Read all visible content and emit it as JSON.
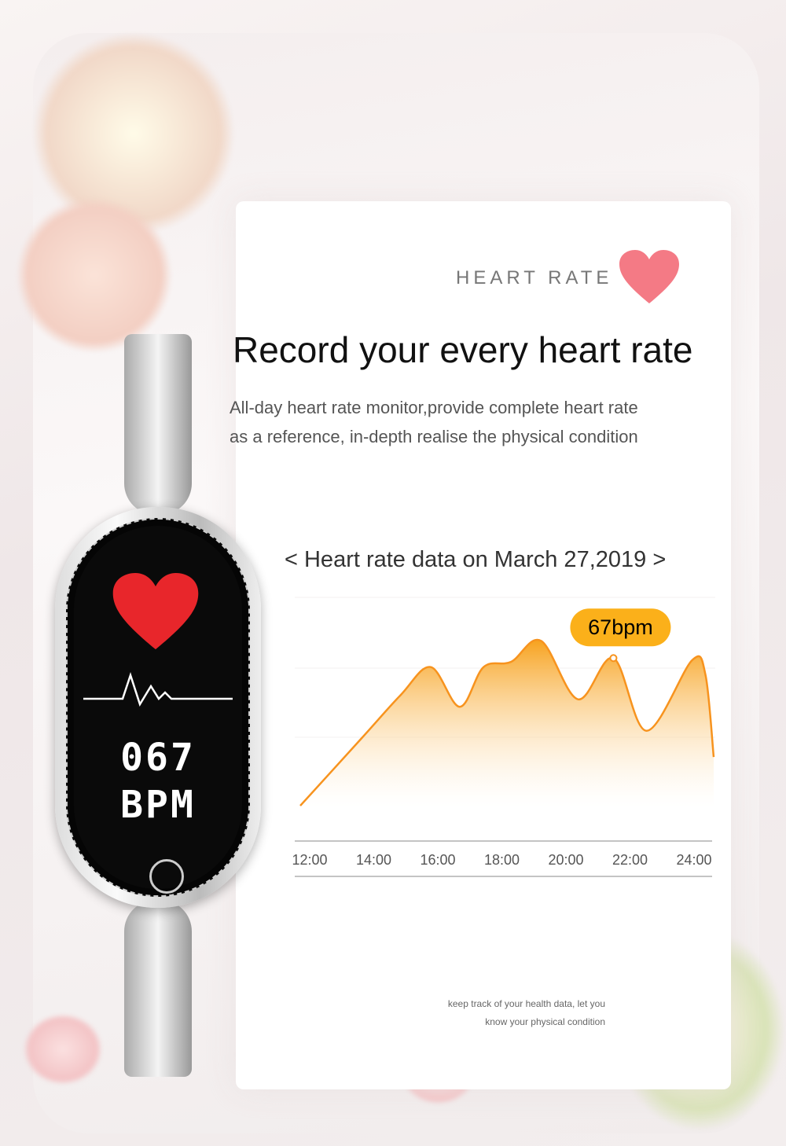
{
  "header": {
    "label": "HEART RATE",
    "icon": "heart-icon",
    "accent": "#f47a85"
  },
  "title": "Record your every heart rate",
  "description": [
    "All-day heart rate monitor,provide complete heart rate",
    "as a reference, in-depth realise the physical condition"
  ],
  "chart_title": "< Heart rate data on March 27,2019 >",
  "footer": [
    "keep track of your health data, let you",
    "know your physical condition"
  ],
  "watch": {
    "value": "067",
    "unit": "BPM"
  },
  "chart_data": {
    "type": "area",
    "x_ticks": [
      "12:00",
      "14:00",
      "16:00",
      "18:00",
      "20:00",
      "22:00",
      "24:00"
    ],
    "xlim": [
      12,
      24
    ],
    "ylim": [
      0,
      280
    ],
    "x": [
      12.0,
      13.78,
      14.92,
      15.79,
      16.63,
      17.32,
      18.12,
      18.99,
      20.06,
      21.09,
      22.05,
      23.37,
      23.76,
      24.0
    ],
    "y": [
      2,
      92,
      150,
      187,
      134,
      187,
      194,
      222,
      144,
      199,
      102,
      196,
      177,
      67
    ],
    "annotation": {
      "text": "67bpm",
      "x": 21.09
    },
    "color": "#f7931e",
    "label_color": "#fbb01a"
  }
}
